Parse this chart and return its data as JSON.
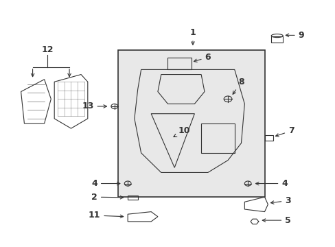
{
  "bg_color": "#ffffff",
  "box_bg": "#e8e8e8",
  "line_color": "#333333"
}
